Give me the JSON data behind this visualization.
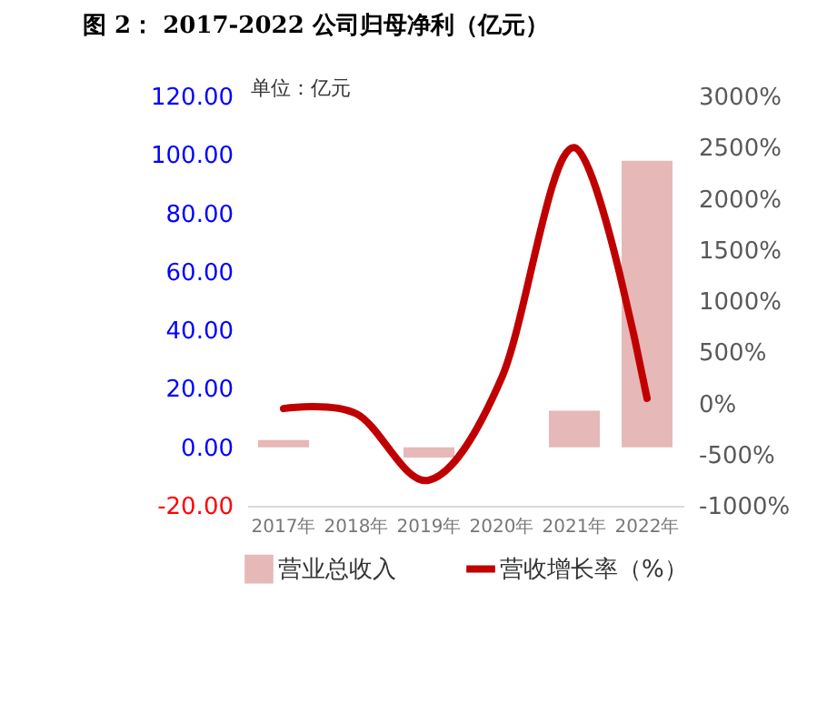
{
  "chart_data": {
    "type": "bar",
    "title": "图 2： 2017-2022 公司归母净利（亿元）",
    "annotations": [
      "单位：亿元"
    ],
    "categories": [
      "2017年",
      "2018年",
      "2019年",
      "2020年",
      "2021年",
      "2022年"
    ],
    "series": [
      {
        "name": "营业总收入",
        "color": "#e6b8b7",
        "values": [
          2.5,
          null,
          -3.5,
          null,
          12.5,
          98
        ]
      },
      {
        "name": "营收增长率（%）",
        "type": "line",
        "axis": "y2",
        "color": "#c00000",
        "values": [
          -50,
          -100,
          -750,
          250,
          2500,
          50
        ]
      }
    ],
    "ylim": [
      -20,
      120
    ],
    "yticks": [
      {
        "value": -20,
        "label": "-20.00"
      },
      {
        "value": 0,
        "label": "0.00"
      },
      {
        "value": 20,
        "label": "20.00"
      },
      {
        "value": 40,
        "label": "40.00"
      },
      {
        "value": 60,
        "label": "60.00"
      },
      {
        "value": 80,
        "label": "80.00"
      },
      {
        "value": 100,
        "label": "100.00"
      },
      {
        "value": 120,
        "label": "120.00"
      }
    ],
    "y2lim": [
      -1000,
      3000
    ],
    "y2ticks": [
      {
        "value": -1000,
        "label": "-1000%"
      },
      {
        "value": -500,
        "label": "-500%"
      },
      {
        "value": 0,
        "label": "0%"
      },
      {
        "value": 500,
        "label": "500%"
      },
      {
        "value": 1000,
        "label": "1000%"
      },
      {
        "value": 1500,
        "label": "1500%"
      },
      {
        "value": 2000,
        "label": "2000%"
      },
      {
        "value": 2500,
        "label": "2500%"
      },
      {
        "value": 3000,
        "label": "3000%"
      }
    ],
    "grid": false,
    "legend": "bottom"
  }
}
